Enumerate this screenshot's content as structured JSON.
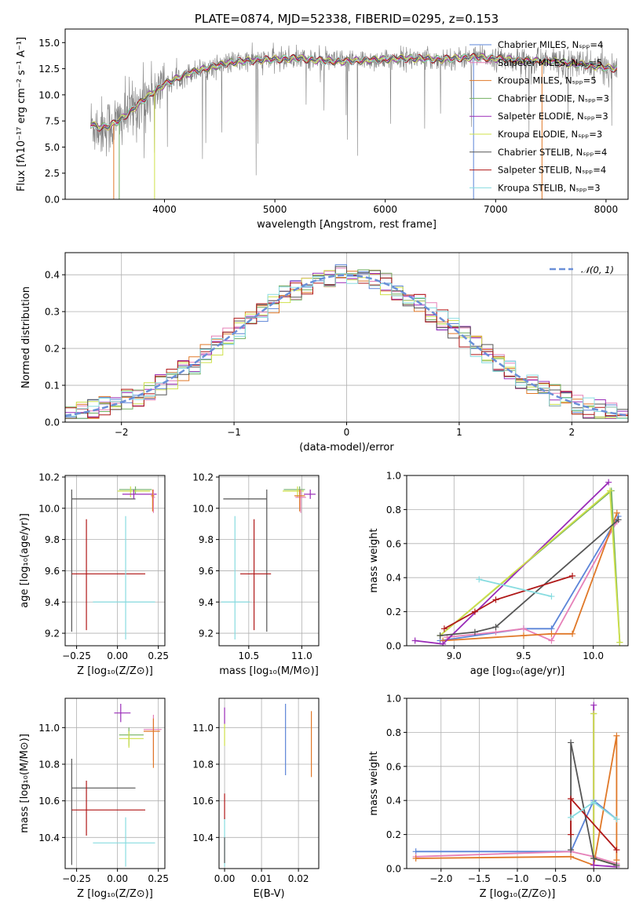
{
  "colors": {
    "chabrier_miles": "#5b84d8",
    "salpeter_miles": "#e680b8",
    "kroupa_miles": "#e07828",
    "chabrier_elodie": "#72b060",
    "salpeter_elodie": "#9a2cb8",
    "kroupa_elodie": "#cfe04a",
    "chabrier_stelib": "#555555",
    "salpeter_stelib": "#b01818",
    "kroupa_stelib": "#88dce0",
    "data": "#808080",
    "normal": "#6a8fd8"
  },
  "chart_data": [
    {
      "id": "spectrum",
      "type": "line",
      "title": "PLATE=0874, MJD=52338, FIBERID=0295, z=0.153",
      "xlabel": "wavelength [Angstrom, rest frame]",
      "ylabel": "Flux [fλ10⁻¹⁷ erg cm⁻² s⁻¹ A⁻¹]",
      "xlim": [
        3100,
        8200
      ],
      "ylim": [
        0,
        16.3
      ],
      "xticks": [
        4000,
        5000,
        6000,
        7000,
        8000
      ],
      "yticks": [
        0.0,
        2.5,
        5.0,
        7.5,
        10.0,
        12.5,
        15.0
      ],
      "legend_position": "upper-right",
      "grid": false,
      "series_legend": [
        "Chabrier MILES, Nₛₚₚ=4",
        "Salpeter MILES, Nₛₚₚ=5",
        "Kroupa MILES, Nₛₚₚ=5",
        "Chabrier ELODIE, Nₛₚₚ=3",
        "Salpeter ELODIE, Nₛₚₚ=3",
        "Kroupa ELODIE, Nₛₚₚ=3",
        "Chabrier STELIB, Nₛₚₚ=4",
        "Salpeter STELIB, Nₛₚₚ=4",
        "Kroupa STELIB, Nₛₚₚ=3"
      ],
      "continuum": [
        [
          3330,
          7.2
        ],
        [
          3400,
          6.9
        ],
        [
          3500,
          7.0
        ],
        [
          3600,
          7.6
        ],
        [
          3700,
          8.5
        ],
        [
          3800,
          9.4
        ],
        [
          3900,
          10.3
        ],
        [
          4000,
          11.0
        ],
        [
          4200,
          12.0
        ],
        [
          4400,
          12.6
        ],
        [
          4600,
          13.1
        ],
        [
          4800,
          13.3
        ],
        [
          5000,
          13.4
        ],
        [
          5200,
          13.5
        ],
        [
          5400,
          13.3
        ],
        [
          5600,
          13.2
        ],
        [
          5800,
          13.3
        ],
        [
          6000,
          13.4
        ],
        [
          6200,
          13.5
        ],
        [
          6500,
          13.4
        ],
        [
          6800,
          13.6
        ],
        [
          7000,
          13.5
        ],
        [
          7200,
          13.3
        ],
        [
          7500,
          13.2
        ],
        [
          7800,
          12.9
        ],
        [
          8000,
          12.6
        ],
        [
          8100,
          12.5
        ]
      ]
    },
    {
      "id": "residuals",
      "type": "histogram",
      "xlabel": "(data-model)/error",
      "ylabel": "Normed distribution",
      "xlim": [
        -2.5,
        2.5
      ],
      "ylim": [
        0,
        0.46
      ],
      "xticks": [
        -2,
        -1,
        0,
        1,
        2
      ],
      "yticks": [
        0.0,
        0.1,
        0.2,
        0.3,
        0.4
      ],
      "grid": true,
      "legend_position": "upper-right",
      "reference_label": "𝒩(0, 1)",
      "bin_width": 0.1
    },
    {
      "id": "age-vs-Z",
      "type": "errorbar",
      "xlabel": "Z [log₁₀(Z/Z⊙)]",
      "ylabel": "age  [log₁₀(age/yr)]",
      "xlim": [
        -0.32,
        0.29
      ],
      "ylim": [
        9.12,
        10.21
      ],
      "xticks": [
        -0.25,
        0.0,
        0.25
      ],
      "xtick_labels": [
        "−0.25",
        "0.00",
        "0.25"
      ],
      "yticks": [
        9.2,
        9.4,
        9.6,
        9.8,
        10.0,
        10.2
      ],
      "grid": true,
      "points": [
        {
          "c": "chabrier_stelib",
          "x": -0.28,
          "xerr": [
            0.0,
            0.39
          ],
          "y": 10.06,
          "yerr": [
            0.85,
            0.06
          ]
        },
        {
          "c": "salpeter_stelib",
          "x": -0.19,
          "xerr": [
            0.09,
            0.36
          ],
          "y": 9.58,
          "yerr": [
            0.36,
            0.35
          ]
        },
        {
          "c": "kroupa_stelib",
          "x": 0.05,
          "xerr": [
            0.2,
            0.18
          ],
          "y": 9.4,
          "yerr": [
            0.24,
            0.55
          ]
        },
        {
          "c": "chabrier_elodie",
          "x": 0.11,
          "xerr": [
            0.1,
            0.1
          ],
          "y": 10.12,
          "yerr": [
            0.03,
            0.02
          ]
        },
        {
          "c": "kroupa_elodie",
          "x": 0.08,
          "xerr": [
            0.08,
            0.12
          ],
          "y": 10.11,
          "yerr": [
            0.04,
            0.03
          ]
        },
        {
          "c": "salpeter_elodie",
          "x": 0.1,
          "xerr": [
            0.07,
            0.14
          ],
          "y": 10.09,
          "yerr": [
            0.03,
            0.03
          ]
        },
        {
          "c": "salpeter_miles",
          "x": 0.22,
          "xerr": [
            0.01,
            0.01
          ],
          "y": 10.07,
          "yerr": [
            0.1,
            0.05
          ]
        },
        {
          "c": "kroupa_miles",
          "x": 0.215,
          "xerr": [
            0.01,
            0.01
          ],
          "y": 10.08,
          "yerr": [
            0.1,
            0.04
          ]
        }
      ]
    },
    {
      "id": "age-vs-mass",
      "type": "errorbar",
      "xlabel": "mass [log₁₀(M/M⊙)]",
      "xlim": [
        10.22,
        11.16
      ],
      "ylim": [
        9.12,
        10.21
      ],
      "xticks": [
        10.5,
        11.0
      ],
      "yticks": [
        9.2,
        9.4,
        9.6,
        9.8,
        10.0,
        10.2
      ],
      "grid": true,
      "points": [
        {
          "c": "chabrier_stelib",
          "x": 10.67,
          "xerr": [
            0.41,
            0.0
          ],
          "y": 10.06,
          "yerr": [
            0.85,
            0.06
          ]
        },
        {
          "c": "salpeter_stelib",
          "x": 10.55,
          "xerr": [
            0.13,
            0.16
          ],
          "y": 9.58,
          "yerr": [
            0.36,
            0.35
          ]
        },
        {
          "c": "kroupa_stelib",
          "x": 10.37,
          "xerr": [
            0.13,
            0.14
          ],
          "y": 9.4,
          "yerr": [
            0.24,
            0.55
          ]
        },
        {
          "c": "chabrier_elodie",
          "x": 10.98,
          "xerr": [
            0.15,
            0.05
          ],
          "y": 10.12,
          "yerr": [
            0.03,
            0.02
          ]
        },
        {
          "c": "kroupa_elodie",
          "x": 10.96,
          "xerr": [
            0.14,
            0.06
          ],
          "y": 10.11,
          "yerr": [
            0.04,
            0.03
          ]
        },
        {
          "c": "salpeter_elodie",
          "x": 11.08,
          "xerr": [
            0.06,
            0.05
          ],
          "y": 10.09,
          "yerr": [
            0.03,
            0.03
          ]
        },
        {
          "c": "salpeter_miles",
          "x": 10.99,
          "xerr": [
            0.05,
            0.05
          ],
          "y": 10.07,
          "yerr": [
            0.1,
            0.05
          ]
        },
        {
          "c": "kroupa_miles",
          "x": 10.98,
          "xerr": [
            0.05,
            0.05
          ],
          "y": 10.08,
          "yerr": [
            0.1,
            0.04
          ]
        }
      ]
    },
    {
      "id": "weight-vs-age",
      "type": "line",
      "xlabel": "age  [log₁₀(age/yr)]",
      "ylabel": "mass weight",
      "xlim": [
        8.66,
        10.25
      ],
      "ylim": [
        0,
        1.0
      ],
      "xticks": [
        9.0,
        9.5,
        10.0
      ],
      "yticks": [
        0.0,
        0.2,
        0.4,
        0.6,
        0.8,
        1.0
      ],
      "grid": true,
      "series": [
        {
          "c": "chabrier_miles",
          "x": [
            8.9,
            9.5,
            9.7,
            10.18
          ],
          "y": [
            0.03,
            0.1,
            0.1,
            0.76
          ]
        },
        {
          "c": "salpeter_miles",
          "x": [
            8.95,
            9.3,
            9.5,
            9.7,
            10.17
          ],
          "y": [
            0.05,
            0.08,
            0.1,
            0.03,
            0.73
          ]
        },
        {
          "c": "kroupa_miles",
          "x": [
            8.92,
            9.5,
            9.7,
            9.85,
            10.17
          ],
          "y": [
            0.03,
            0.06,
            0.07,
            0.07,
            0.78
          ]
        },
        {
          "c": "chabrier_elodie",
          "x": [
            8.9,
            10.13,
            10.19
          ],
          "y": [
            0.06,
            0.91,
            0.02
          ]
        },
        {
          "c": "salpeter_elodie",
          "x": [
            8.72,
            8.92,
            10.11
          ],
          "y": [
            0.03,
            0.01,
            0.96
          ]
        },
        {
          "c": "kroupa_elodie",
          "x": [
            8.9,
            10.12,
            10.19
          ],
          "y": [
            0.06,
            0.91,
            0.02
          ]
        },
        {
          "c": "chabrier_stelib",
          "x": [
            8.9,
            9.15,
            9.3,
            10.18
          ],
          "y": [
            0.06,
            0.08,
            0.11,
            0.74
          ]
        },
        {
          "c": "salpeter_stelib",
          "x": [
            8.93,
            9.15,
            9.3,
            9.85
          ],
          "y": [
            0.1,
            0.2,
            0.27,
            0.41
          ]
        },
        {
          "c": "kroupa_stelib",
          "x": [
            9.18,
            9.7
          ],
          "y": [
            0.39,
            0.29
          ]
        }
      ]
    },
    {
      "id": "mass-vs-Z",
      "type": "errorbar",
      "xlabel": "Z [log₁₀(Z/Z⊙)]",
      "ylabel": "mass [log₁₀(M/M⊙)]",
      "xlim": [
        -0.32,
        0.29
      ],
      "ylim": [
        10.23,
        11.16
      ],
      "xticks": [
        -0.25,
        0.0,
        0.25
      ],
      "xtick_labels": [
        "−0.25",
        "0.00",
        "0.25"
      ],
      "yticks": [
        10.4,
        10.6,
        10.8,
        11.0
      ],
      "grid": true,
      "points": [
        {
          "c": "chabrier_stelib",
          "x": -0.28,
          "xerr": [
            0.0,
            0.39
          ],
          "y": 10.67,
          "yerr": [
            0.42,
            0.16
          ]
        },
        {
          "c": "salpeter_stelib",
          "x": -0.19,
          "xerr": [
            0.09,
            0.36
          ],
          "y": 10.55,
          "yerr": [
            0.14,
            0.16
          ]
        },
        {
          "c": "kroupa_stelib",
          "x": 0.05,
          "xerr": [
            0.2,
            0.18
          ],
          "y": 10.37,
          "yerr": [
            0.13,
            0.14
          ]
        },
        {
          "c": "salpeter_elodie",
          "x": 0.02,
          "xerr": [
            0.04,
            0.06
          ],
          "y": 11.08,
          "yerr": [
            0.05,
            0.05
          ]
        },
        {
          "c": "chabrier_elodie",
          "x": 0.07,
          "xerr": [
            0.06,
            0.09
          ],
          "y": 10.96,
          "yerr": [
            0.06,
            0.04
          ]
        },
        {
          "c": "kroupa_elodie",
          "x": 0.07,
          "xerr": [
            0.06,
            0.09
          ],
          "y": 10.94,
          "yerr": [
            0.05,
            0.04
          ]
        },
        {
          "c": "salpeter_miles",
          "x": 0.22,
          "xerr": [
            0.06,
            0.05
          ],
          "y": 10.99,
          "yerr": [
            0.17,
            0.08
          ]
        },
        {
          "c": "kroupa_miles",
          "x": 0.22,
          "xerr": [
            0.06,
            0.04
          ],
          "y": 10.98,
          "yerr": [
            0.2,
            0.07
          ]
        }
      ]
    },
    {
      "id": "mass-vs-EBV",
      "type": "errorbar",
      "xlabel": "E(B-V)",
      "xlim": [
        -0.0015,
        0.0255
      ],
      "ylim": [
        10.23,
        11.16
      ],
      "xticks": [
        0.0,
        0.01,
        0.02
      ],
      "xtick_labels": [
        "0.00",
        "0.01",
        "0.02"
      ],
      "yticks": [
        10.4,
        10.6,
        10.8,
        11.0
      ],
      "grid": true,
      "points": [
        {
          "c": "kroupa_stelib",
          "x": 0.0,
          "xerr": [
            0,
            0
          ],
          "y": 10.37,
          "yerr": [
            0.13,
            0.14
          ]
        },
        {
          "c": "salpeter_stelib",
          "x": 0.0,
          "xerr": [
            0,
            0
          ],
          "y": 10.58,
          "yerr": [
            0.08,
            0.06
          ]
        },
        {
          "c": "chabrier_stelib",
          "x": 0.0,
          "xerr": [
            0,
            0
          ],
          "y": 10.32,
          "yerr": [
            0.06,
            0.08
          ]
        },
        {
          "c": "salpeter_elodie",
          "x": 0.0,
          "xerr": [
            0,
            0
          ],
          "y": 11.06,
          "yerr": [
            0.04,
            0.05
          ]
        },
        {
          "c": "kroupa_elodie",
          "x": 0.0,
          "xerr": [
            0,
            0
          ],
          "y": 10.96,
          "yerr": [
            0.06,
            0.06
          ]
        },
        {
          "c": "chabrier_miles",
          "x": 0.0165,
          "xerr": [
            0,
            0
          ],
          "y": 10.94,
          "yerr": [
            0.2,
            0.19
          ]
        },
        {
          "c": "kroupa_miles",
          "x": 0.0235,
          "xerr": [
            0,
            0
          ],
          "y": 10.91,
          "yerr": [
            0.18,
            0.18
          ]
        }
      ]
    },
    {
      "id": "weight-vs-Z",
      "type": "line",
      "xlabel": "Z [log₁₀(Z/Z⊙)]",
      "ylabel": "mass weight",
      "xlim": [
        -2.45,
        0.45
      ],
      "ylim": [
        0,
        1.0
      ],
      "xticks": [
        -2.0,
        -1.5,
        -1.0,
        -0.5,
        0.0
      ],
      "xtick_labels": [
        "−2.0",
        "−1.5",
        "−1.0",
        "−0.5",
        "0.0"
      ],
      "yticks": [
        0.0,
        0.2,
        0.4,
        0.6,
        0.8,
        1.0
      ],
      "grid": true,
      "series": [
        {
          "c": "chabrier_miles",
          "x": [
            -2.33,
            -0.3,
            0.0,
            0.3
          ],
          "y": [
            0.1,
            0.1,
            0.4,
            0.29
          ]
        },
        {
          "c": "salpeter_miles",
          "x": [
            -2.33,
            -0.3,
            0.0,
            0.3
          ],
          "y": [
            0.07,
            0.1,
            0.07,
            0.03
          ]
        },
        {
          "c": "kroupa_miles",
          "x": [
            -2.33,
            -0.3,
            0.0,
            0.3,
            0.3
          ],
          "y": [
            0.06,
            0.07,
            0.02,
            0.78,
            0.05
          ]
        },
        {
          "c": "chabrier_elodie",
          "x": [
            0.0,
            0.0,
            0.3
          ],
          "y": [
            0.91,
            0.06,
            0.02
          ]
        },
        {
          "c": "salpeter_elodie",
          "x": [
            0.0,
            0.0,
            0.3
          ],
          "y": [
            0.96,
            0.02,
            0.01
          ]
        },
        {
          "c": "kroupa_elodie",
          "x": [
            0.0,
            0.0,
            0.3
          ],
          "y": [
            0.91,
            0.06,
            0.02
          ]
        },
        {
          "c": "chabrier_stelib",
          "x": [
            -0.3,
            -0.3,
            0.0,
            0.3
          ],
          "y": [
            0.11,
            0.74,
            0.06,
            0.02
          ]
        },
        {
          "c": "salpeter_stelib",
          "x": [
            -0.3,
            -0.3,
            0.3
          ],
          "y": [
            0.2,
            0.41,
            0.11
          ]
        },
        {
          "c": "kroupa_stelib",
          "x": [
            -0.3,
            0.0,
            0.3
          ],
          "y": [
            0.3,
            0.39,
            0.29
          ]
        }
      ]
    }
  ]
}
